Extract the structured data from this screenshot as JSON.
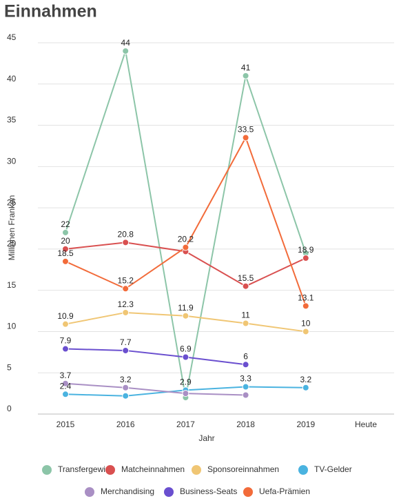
{
  "chart_data": {
    "type": "line",
    "title": "Einnahmen",
    "x_label": "Jahr",
    "y_label": "Millionen Franken",
    "categories": [
      "2015",
      "2016",
      "2017",
      "2018",
      "2019",
      "Heute"
    ],
    "ylim": [
      0,
      45
    ],
    "yticks": [
      0,
      5,
      10,
      15,
      20,
      25,
      30,
      35,
      40,
      45
    ],
    "grid": true,
    "series": [
      {
        "name": "Transfergewinn",
        "color": "#8cc5a8",
        "values": [
          22,
          44,
          2,
          41,
          19.5,
          null
        ],
        "value_labels": [
          "22",
          "44",
          null,
          "41",
          null,
          null
        ]
      },
      {
        "name": "Matcheinnahmen",
        "color": "#d95050",
        "values": [
          20,
          20.8,
          19.7,
          15.5,
          18.9,
          null
        ],
        "value_labels": [
          "20",
          "20.8",
          null,
          "15.5",
          "18.9",
          null
        ]
      },
      {
        "name": "Sponsoreinnahmen",
        "color": "#f0c674",
        "values": [
          10.9,
          12.3,
          11.9,
          11,
          10,
          null
        ],
        "value_labels": [
          "10.9",
          "12.3",
          "11.9",
          "11",
          "10",
          null
        ]
      },
      {
        "name": "TV-Gelder",
        "color": "#4ab3e0",
        "values": [
          2.4,
          2.2,
          2.9,
          3.3,
          3.2,
          null
        ],
        "value_labels": [
          "2.4",
          null,
          "2.9",
          "3.3",
          "3.2",
          null
        ]
      },
      {
        "name": "Merchandising",
        "color": "#a98fc4",
        "values": [
          3.7,
          3.2,
          2.5,
          2.3,
          null,
          null
        ],
        "value_labels": [
          "3.7",
          "3.2",
          null,
          null,
          null,
          null
        ]
      },
      {
        "name": "Business-Seats",
        "color": "#6a4fcf",
        "values": [
          7.9,
          7.7,
          6.9,
          6,
          null,
          null
        ],
        "value_labels": [
          "7.9",
          "7.7",
          "6.9",
          "6",
          null,
          null
        ]
      },
      {
        "name": "Uefa-Prämien",
        "color": "#f26b3a",
        "values": [
          18.5,
          15.2,
          20.2,
          33.5,
          13.1,
          null
        ],
        "value_labels": [
          "18.5",
          "15.2",
          "20.2",
          "33.5",
          "13.1",
          null
        ]
      }
    ]
  }
}
